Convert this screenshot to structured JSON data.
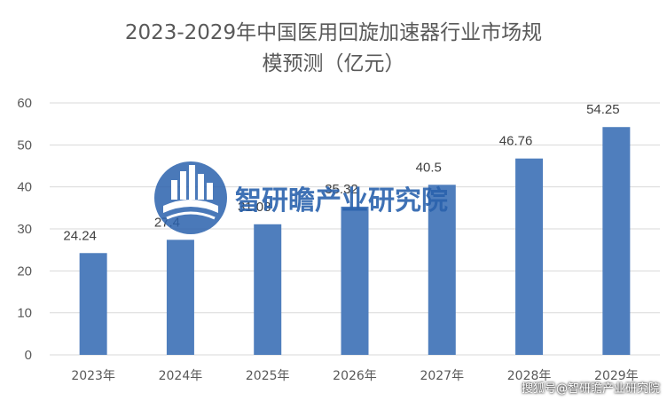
{
  "colors": {
    "bar": "#4f7ebd",
    "grid": "#d9d9d9",
    "text": "#595959",
    "watermark": "#2a62ad"
  },
  "chart_data": {
    "type": "bar",
    "title_lines": [
      "2023-2029年中国医用回旋加速器行业市场规",
      "模预测（亿元）"
    ],
    "categories": [
      "2023年",
      "2024年",
      "2025年",
      "2026年",
      "2027年",
      "2028年",
      "2029年"
    ],
    "values": [
      24.24,
      27.4,
      31.1,
      35.3,
      40.5,
      46.76,
      54.25
    ],
    "labels": [
      "24.24",
      "27.4",
      "31.08",
      "35.32",
      "40.5",
      "46.76",
      "54.25"
    ],
    "yticks": [
      0,
      10,
      20,
      30,
      40,
      50,
      60
    ],
    "ylim": [
      0,
      60
    ],
    "grid": true,
    "legend": "none"
  },
  "watermark": {
    "name": "智研瞻产业研究院",
    "icon": "building-book-logo-icon"
  },
  "credit": "搜狐号@智研瞻产业研究院"
}
